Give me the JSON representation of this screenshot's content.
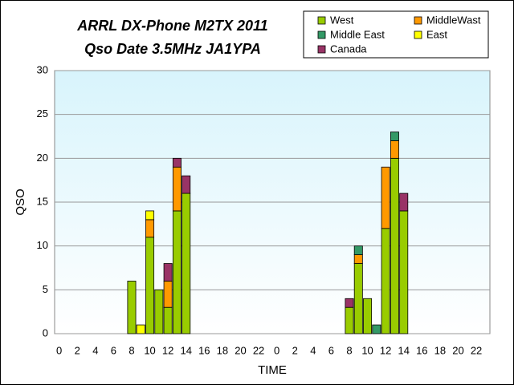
{
  "chart_data": {
    "type": "stacked-bar",
    "title": "ARRL DX-Phone M2TX 2011",
    "subtitle": "Qso Date 3.5MHz JA1YPA",
    "x_label": "TIME",
    "y_label": "QSO",
    "categories": [
      "0",
      null,
      "2",
      null,
      "4",
      null,
      "6",
      null,
      "8",
      null,
      "10",
      null,
      "12",
      null,
      "14",
      null,
      "16",
      null,
      "18",
      null,
      "20",
      null,
      "22",
      null,
      "0",
      null,
      "2",
      null,
      "4",
      null,
      "6",
      null,
      "8",
      null,
      "10",
      null,
      "12",
      null,
      "14",
      null,
      "16",
      null,
      "18",
      null,
      "20",
      null,
      "22",
      null
    ],
    "series": [
      {
        "name": "West",
        "color": "#99cc00",
        "values": [
          0,
          0,
          0,
          0,
          0,
          0,
          0,
          0,
          6,
          0,
          11,
          5,
          3,
          14,
          16,
          0,
          0,
          0,
          0,
          0,
          0,
          0,
          0,
          0,
          0,
          0,
          0,
          0,
          0,
          0,
          0,
          0,
          3,
          8,
          4,
          0,
          12,
          20,
          14,
          0,
          0,
          0,
          0,
          0,
          0,
          0,
          0,
          0
        ]
      },
      {
        "name": "MiddleWast",
        "color": "#ff9900",
        "values": [
          0,
          0,
          0,
          0,
          0,
          0,
          0,
          0,
          0,
          0,
          2,
          0,
          3,
          5,
          0,
          0,
          0,
          0,
          0,
          0,
          0,
          0,
          0,
          0,
          0,
          0,
          0,
          0,
          0,
          0,
          0,
          0,
          0,
          1,
          0,
          0,
          7,
          2,
          0,
          0,
          0,
          0,
          0,
          0,
          0,
          0,
          0,
          0
        ]
      },
      {
        "name": "Middle East",
        "color": "#339966",
        "values": [
          0,
          0,
          0,
          0,
          0,
          0,
          0,
          0,
          0,
          0,
          0,
          0,
          0,
          0,
          0,
          0,
          0,
          0,
          0,
          0,
          0,
          0,
          0,
          0,
          0,
          0,
          0,
          0,
          0,
          0,
          0,
          0,
          0,
          1,
          0,
          1,
          0,
          1,
          0,
          0,
          0,
          0,
          0,
          0,
          0,
          0,
          0,
          0
        ]
      },
      {
        "name": "East",
        "color": "#ffff00",
        "values": [
          0,
          0,
          0,
          0,
          0,
          0,
          0,
          0,
          0,
          1,
          1,
          0,
          0,
          0,
          0,
          0,
          0,
          0,
          0,
          0,
          0,
          0,
          0,
          0,
          0,
          0,
          0,
          0,
          0,
          0,
          0,
          0,
          0,
          0,
          0,
          0,
          0,
          0,
          0,
          0,
          0,
          0,
          0,
          0,
          0,
          0,
          0,
          0
        ]
      },
      {
        "name": "Canada",
        "color": "#993366",
        "values": [
          0,
          0,
          0,
          0,
          0,
          0,
          0,
          0,
          0,
          0,
          0,
          0,
          2,
          1,
          2,
          0,
          0,
          0,
          0,
          0,
          0,
          0,
          0,
          0,
          0,
          0,
          0,
          0,
          0,
          0,
          0,
          0,
          1,
          0,
          0,
          0,
          0,
          0,
          2,
          0,
          0,
          0,
          0,
          0,
          0,
          0,
          0,
          0
        ]
      }
    ],
    "ylim": [
      0,
      30
    ],
    "yticks": [
      0,
      5,
      10,
      15,
      20,
      25,
      30
    ],
    "grid": true,
    "legend": "upper right"
  }
}
